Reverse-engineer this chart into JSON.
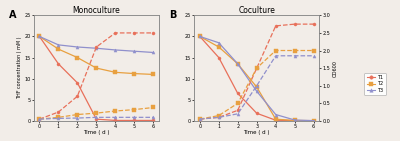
{
  "title_A": "Monoculture",
  "title_B": "Coculture",
  "label_A": "A",
  "label_B": "B",
  "xlabel": "Time ( d )",
  "ylabel_left": "THF concentration ( mM )",
  "ylabel_right": "OD600",
  "time": [
    0,
    1,
    2,
    3,
    4,
    5,
    6
  ],
  "A_THF_T1": [
    20.0,
    13.5,
    9.0,
    0.4,
    0.1,
    0.1,
    0.1
  ],
  "A_THF_T2": [
    20.0,
    17.0,
    15.0,
    12.5,
    11.5,
    11.2,
    11.0
  ],
  "A_THF_T3": [
    20.0,
    18.0,
    17.5,
    17.2,
    16.8,
    16.5,
    16.2
  ],
  "A_OD_T1": [
    0.05,
    0.25,
    0.7,
    2.1,
    2.5,
    2.5,
    2.5
  ],
  "A_OD_T2": [
    0.05,
    0.1,
    0.18,
    0.22,
    0.28,
    0.32,
    0.38
  ],
  "A_OD_T3": [
    0.05,
    0.07,
    0.08,
    0.1,
    0.1,
    0.1,
    0.1
  ],
  "B_THF_T1": [
    20.0,
    15.0,
    6.5,
    1.8,
    0.15,
    0.05,
    0.05
  ],
  "B_THF_T2": [
    20.0,
    17.5,
    13.5,
    8.0,
    0.4,
    0.1,
    0.05
  ],
  "B_THF_T3": [
    20.0,
    18.5,
    13.5,
    7.0,
    1.5,
    0.2,
    0.05
  ],
  "B_OD_T1": [
    0.05,
    0.1,
    0.3,
    1.5,
    2.7,
    2.75,
    2.75
  ],
  "B_OD_T2": [
    0.05,
    0.15,
    0.5,
    1.5,
    2.0,
    2.0,
    2.0
  ],
  "B_OD_T3": [
    0.05,
    0.1,
    0.2,
    1.0,
    1.85,
    1.85,
    1.85
  ],
  "color_T1": "#E8705A",
  "color_T2": "#E8A040",
  "color_T3": "#9090CC",
  "ylim_left": [
    0,
    25
  ],
  "ylim_right": [
    0.0,
    3.0
  ],
  "yticks_left": [
    0,
    5,
    10,
    15,
    20,
    25
  ],
  "yticks_right": [
    0.0,
    0.5,
    1.0,
    1.5,
    2.0,
    2.5,
    3.0
  ],
  "background_color": "#FFFFFF",
  "fig_bg": "#F2EDE8"
}
